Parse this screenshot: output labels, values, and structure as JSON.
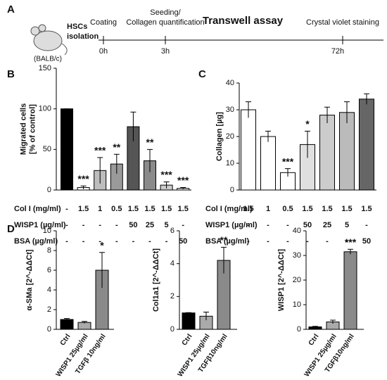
{
  "timeline": {
    "panel": "A",
    "strain": "(BALB/c)",
    "isolation": [
      "HSCs",
      "isolation"
    ],
    "steps": [
      {
        "above": [
          "Coating"
        ],
        "time": "0h"
      },
      {
        "above": [
          "Seeding/",
          "Collagen quantification"
        ],
        "time": "3h"
      },
      {
        "above": [
          "Crystal violet staining"
        ],
        "time": "72h"
      }
    ],
    "title": "Transwell assay"
  },
  "chart_data": [
    {
      "type": "bar",
      "panel": "B",
      "ylabel": [
        "Migrated cells",
        "[% of control]"
      ],
      "ylim": [
        0,
        150
      ],
      "yticks": [
        0,
        50,
        100,
        150
      ],
      "categories": [
        null,
        null,
        null,
        null,
        null,
        null,
        null,
        null
      ],
      "values": [
        100,
        3,
        24,
        32,
        78,
        36,
        6,
        2
      ],
      "errors": [
        0,
        2,
        16,
        12,
        18,
        14,
        4,
        1
      ],
      "colors": [
        "#000000",
        "#ffffff",
        "#bdbdbd",
        "#9a9a9a",
        "#555555",
        "#8a8a8a",
        "#cccccc",
        "#ffffff"
      ],
      "annotations": [
        null,
        "***",
        "***",
        "**",
        null,
        "**",
        "***",
        "***"
      ],
      "table_rows": [
        {
          "label": "Col I (mg/ml)",
          "cells": [
            "-",
            "1.5",
            "1",
            "0.5",
            "1.5",
            "1.5",
            "1.5",
            "1.5"
          ]
        },
        {
          "label": "WISP1 (µg/ml)",
          "cells": [
            "-",
            "-",
            "-",
            "-",
            "50",
            "25",
            "5",
            "-"
          ]
        },
        {
          "label": "BSA (µg/ml)",
          "cells": [
            "-",
            "-",
            "-",
            "-",
            "-",
            "-",
            "-",
            "50"
          ]
        }
      ]
    },
    {
      "type": "bar",
      "panel": "C",
      "ylabel": [
        "Collagen [µg]"
      ],
      "ylim": [
        0,
        40
      ],
      "yticks": [
        0,
        10,
        20,
        30,
        40
      ],
      "categories": [
        null,
        null,
        null,
        null,
        null,
        null,
        null
      ],
      "values": [
        30,
        20,
        6.5,
        17,
        28,
        29,
        34
      ],
      "errors": [
        3,
        2,
        1.5,
        5,
        3,
        4,
        2
      ],
      "colors": [
        "#ffffff",
        "#ffffff",
        "#ffffff",
        "#e0e0e0",
        "#cccccc",
        "#bbbbbb",
        "#666666"
      ],
      "annotations": [
        null,
        null,
        "***",
        "*",
        null,
        null,
        null
      ],
      "table_rows": [
        {
          "label": "Col I (mg/ml)",
          "cells": [
            "1.5",
            "1",
            "0.5",
            "1.5",
            "1.5",
            "1.5",
            "1.5"
          ]
        },
        {
          "label": "WISP1 (µg/ml)",
          "cells": [
            "-",
            "-",
            "-",
            "50",
            "25",
            "5",
            "-"
          ]
        },
        {
          "label": "BSA (µg/ml)",
          "cells": [
            "-",
            "-",
            "-",
            "-",
            "-",
            "-",
            "50"
          ]
        }
      ]
    },
    {
      "type": "bar",
      "panel": "D",
      "ylabel": [
        "α-SMa [2^-ΔΔCt]"
      ],
      "ylim": [
        0,
        10
      ],
      "yticks": [
        0,
        2,
        4,
        6,
        8,
        10
      ],
      "categories": [
        "Ctrl",
        "WISP1 25µg/ml",
        "TGFβ 10ng/ml"
      ],
      "values": [
        1,
        0.7,
        6
      ],
      "errors": [
        0.1,
        0.1,
        1.8
      ],
      "colors": [
        "#000000",
        "#aaaaaa",
        "#8a8a8a"
      ],
      "annotations": [
        null,
        null,
        "*"
      ]
    },
    {
      "type": "bar",
      "ylabel": [
        "Col1a1 [2^-ΔΔCt]"
      ],
      "ylim": [
        0,
        6
      ],
      "yticks": [
        0,
        2,
        4,
        6
      ],
      "categories": [
        "Ctrl",
        "WISP1 25µg/ml",
        "TGFβ10ng/ml"
      ],
      "values": [
        1,
        0.8,
        4.2
      ],
      "errors": [
        0.02,
        0.25,
        0.8
      ],
      "colors": [
        "#000000",
        "#aaaaaa",
        "#8a8a8a"
      ],
      "annotations": [
        null,
        null,
        "**"
      ]
    },
    {
      "type": "bar",
      "ylabel": [
        "WISP1 [2^-ΔΔCt]"
      ],
      "ylim": [
        0,
        40
      ],
      "yticks": [
        0,
        10,
        20,
        30,
        40
      ],
      "categories": [
        "Ctrl",
        "WISP1 25µg/ml",
        "TGFβ10ng/ml"
      ],
      "values": [
        1,
        3,
        31.5
      ],
      "errors": [
        0.2,
        0.7,
        1
      ],
      "colors": [
        "#000000",
        "#aaaaaa",
        "#8a8a8a"
      ],
      "annotations": [
        null,
        null,
        "***"
      ]
    }
  ]
}
